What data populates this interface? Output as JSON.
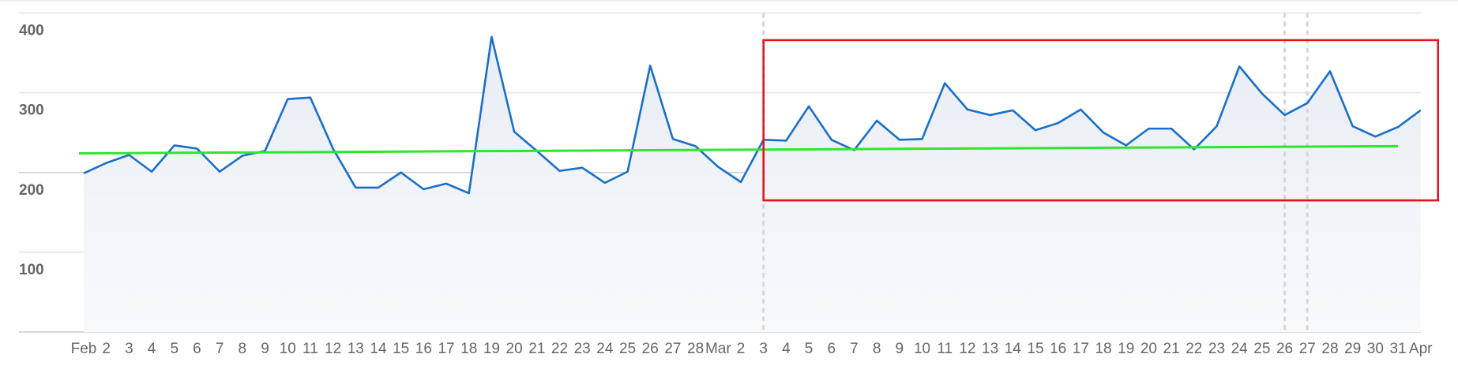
{
  "chart_data": {
    "type": "area-line",
    "categories": [
      "Feb",
      "2",
      "3",
      "4",
      "5",
      "6",
      "7",
      "8",
      "9",
      "10",
      "11",
      "12",
      "13",
      "14",
      "15",
      "16",
      "17",
      "18",
      "19",
      "20",
      "21",
      "22",
      "23",
      "24",
      "25",
      "26",
      "27",
      "28",
      "Mar",
      "2",
      "3",
      "4",
      "5",
      "6",
      "7",
      "8",
      "9",
      "10",
      "11",
      "12",
      "13",
      "14",
      "15",
      "16",
      "17",
      "18",
      "19",
      "20",
      "21",
      "22",
      "23",
      "24",
      "25",
      "26",
      "27",
      "28",
      "29",
      "30",
      "31",
      "Apr"
    ],
    "values": [
      199,
      212,
      222,
      201,
      234,
      230,
      201,
      221,
      227,
      292,
      294,
      230,
      181,
      181,
      200,
      179,
      186,
      174,
      370,
      251,
      227,
      202,
      206,
      187,
      201,
      334,
      242,
      233,
      207,
      188,
      241,
      240,
      283,
      241,
      228,
      265,
      241,
      242,
      312,
      279,
      272,
      278,
      253,
      262,
      279,
      250,
      234,
      255,
      255,
      229,
      258,
      333,
      299,
      272,
      287,
      327,
      258,
      245,
      257,
      278
    ],
    "color": "#1a6fc9",
    "ylim": [
      0,
      400
    ],
    "yticks": [
      100,
      200,
      300,
      400
    ],
    "grid": true,
    "trend": {
      "color": "#2ee62e",
      "x_index": [
        0,
        58
      ],
      "values": [
        224,
        233
      ]
    },
    "highlight": {
      "color": "#e8141c",
      "x_index": [
        30,
        59
      ],
      "range": [
        165,
        366
      ]
    },
    "markers": [
      30,
      53,
      54
    ]
  }
}
